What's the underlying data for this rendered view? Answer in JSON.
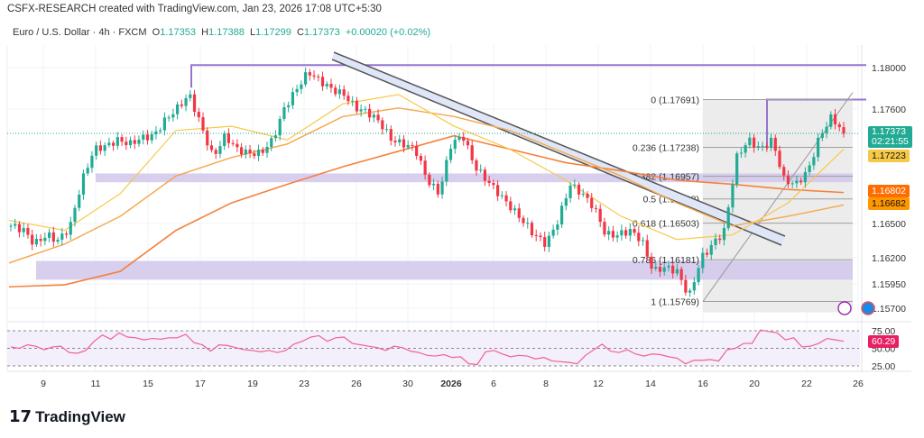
{
  "header": {
    "credit": "CSFX-RESEARCH created with TradingView.com, Jan 23, 2026 17:08 UTC+5:30",
    "symbol": "Euro / U.S. Dollar · 4h · FXCM",
    "open_label": "O",
    "open": "1.17353",
    "high_label": "H",
    "high": "1.17388",
    "low_label": "L",
    "low": "1.17299",
    "close_label": "C",
    "close": "1.17373",
    "change": "+0.00020 (+0.02%)"
  },
  "price_axis": [
    "1.18000",
    "1.17600",
    "1.16500",
    "1.16200",
    "1.15950",
    "1.15700"
  ],
  "price_tags": {
    "last": "1.17373",
    "countdown": "02:21:55",
    "ma_fast": "1.17223",
    "ma_slow": "1.16802",
    "ma_mid": "1.16682"
  },
  "fib_levels": [
    {
      "label": "0 (1.17691)",
      "price": 1.17691
    },
    {
      "label": "0.236 (1.17238)",
      "price": 1.17238
    },
    {
      "label": "0.382 (1.16957)",
      "price": 1.16957
    },
    {
      "label": "0.5 (1.16738)",
      "price": 1.16738
    },
    {
      "label": "0.618 (1.16503)",
      "price": 1.16503
    },
    {
      "label": "0.786 (1.16181)",
      "price": 1.16181
    },
    {
      "label": "1 (1.15769)",
      "price": 1.15769
    }
  ],
  "time_axis": [
    "9",
    "11",
    "15",
    "17",
    "19",
    "23",
    "26",
    "30",
    "2026",
    "6",
    "8",
    "12",
    "14",
    "16",
    "20",
    "22",
    "26"
  ],
  "rsi": {
    "levels": [
      "75.00",
      "50.00",
      "25.00"
    ],
    "value": "60.29",
    "values": [
      52,
      50,
      55,
      53,
      48,
      52,
      53,
      44,
      43,
      47,
      60,
      69,
      63,
      72,
      66,
      65,
      62,
      64,
      63,
      65,
      65,
      70,
      58,
      55,
      46,
      55,
      54,
      51,
      48,
      47,
      45,
      47,
      44,
      47,
      56,
      60,
      66,
      68,
      60,
      65,
      66,
      57,
      55,
      53,
      51,
      47,
      53,
      51,
      46,
      44,
      40,
      39,
      41,
      37,
      38,
      28,
      27,
      45,
      47,
      42,
      38,
      40,
      39,
      35,
      37,
      32,
      31,
      30,
      28,
      40,
      48,
      56,
      46,
      44,
      48,
      42,
      39,
      42,
      41,
      38,
      36,
      28,
      33,
      33,
      34,
      32,
      48,
      50,
      57,
      57,
      76,
      74,
      72,
      62,
      65,
      52,
      53,
      57,
      64,
      62,
      60
    ]
  },
  "colors": {
    "up": "#22ab94",
    "down": "#f23645",
    "ma_fast": "#f7c948",
    "ma_mid": "#f5a74b",
    "ma_slow": "#f5823c",
    "zone": "#d4c9ec",
    "resistance": "#9575cd",
    "rsi": "#f06292"
  },
  "chart_data": {
    "type": "candlestick",
    "closes": [
      1.1648,
      1.1645,
      1.1632,
      1.164,
      1.1635,
      1.1648,
      1.1692,
      1.1722,
      1.1725,
      1.1731,
      1.1727,
      1.1733,
      1.1735,
      1.175,
      1.1761,
      1.1774,
      1.1744,
      1.1714,
      1.1735,
      1.1722,
      1.1718,
      1.1718,
      1.1731,
      1.1761,
      1.1779,
      1.1796,
      1.1787,
      1.1779,
      1.1774,
      1.1761,
      1.1757,
      1.1748,
      1.1731,
      1.1727,
      1.1722,
      1.1692,
      1.1679,
      1.1727,
      1.1735,
      1.1705,
      1.1692,
      1.1679,
      1.1666,
      1.1653,
      1.164,
      1.1632,
      1.1653,
      1.1688,
      1.1679,
      1.1666,
      1.164,
      1.164,
      1.1644,
      1.1636,
      1.1607,
      1.1611,
      1.1607,
      1.1582,
      1.1619,
      1.1632,
      1.1644,
      1.1714,
      1.1731,
      1.1722,
      1.1731,
      1.1692,
      1.1688,
      1.1701,
      1.1735,
      1.1753,
      1.1737
    ],
    "ma_fast": [
      1.1653,
      1.1644,
      1.1679,
      1.174,
      1.1744,
      1.1731,
      1.1765,
      1.1774,
      1.1744,
      1.1722,
      1.1692,
      1.1657,
      1.1636,
      1.164,
      1.167,
      1.1722
    ],
    "ma_mid": [
      1.1615,
      1.1632,
      1.1657,
      1.1696,
      1.1714,
      1.1727,
      1.1753,
      1.1761,
      1.1753,
      1.174,
      1.1718,
      1.1696,
      1.167,
      1.1648,
      1.1657,
      1.1668
    ],
    "ma_slow": [
      1.1592,
      1.1594,
      1.1607,
      1.1644,
      1.167,
      1.1688,
      1.1705,
      1.172,
      1.1735,
      1.1722,
      1.1709,
      1.1701,
      1.1692,
      1.1688,
      1.1683,
      1.168
    ],
    "resistance": 1.1803,
    "zones": [
      [
        1.169,
        1.16985
      ],
      [
        1.1599,
        1.1617
      ]
    ],
    "ylim": [
      1.1565,
      1.181
    ]
  }
}
